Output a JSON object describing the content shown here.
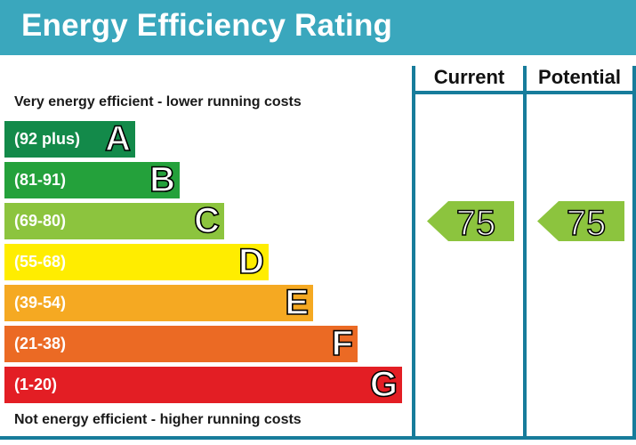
{
  "header": {
    "title": "Energy Efficiency Rating"
  },
  "captions": {
    "top": "Very energy efficient - lower running costs",
    "bottom": "Not energy efficient - higher running costs"
  },
  "columns": {
    "current": "Current",
    "potential": "Potential"
  },
  "chart_data": {
    "type": "bar",
    "title": "Energy Efficiency Rating",
    "categories": [
      "A",
      "B",
      "C",
      "D",
      "E",
      "F",
      "G"
    ],
    "bands": [
      {
        "letter": "A",
        "range": "(92 plus)",
        "color": "#138a4a"
      },
      {
        "letter": "B",
        "range": "(81-91)",
        "color": "#24a13b"
      },
      {
        "letter": "C",
        "range": "(69-80)",
        "color": "#8cc43e"
      },
      {
        "letter": "D",
        "range": "(55-68)",
        "color": "#ffed00"
      },
      {
        "letter": "E",
        "range": "(39-54)",
        "color": "#f5a922"
      },
      {
        "letter": "F",
        "range": "(21-38)",
        "color": "#eb6a24"
      },
      {
        "letter": "G",
        "range": "(1-20)",
        "color": "#e31e24"
      }
    ],
    "current": {
      "value": "75",
      "band": "C",
      "color": "#8cc43e"
    },
    "potential": {
      "value": "75",
      "band": "C",
      "color": "#8cc43e"
    }
  }
}
